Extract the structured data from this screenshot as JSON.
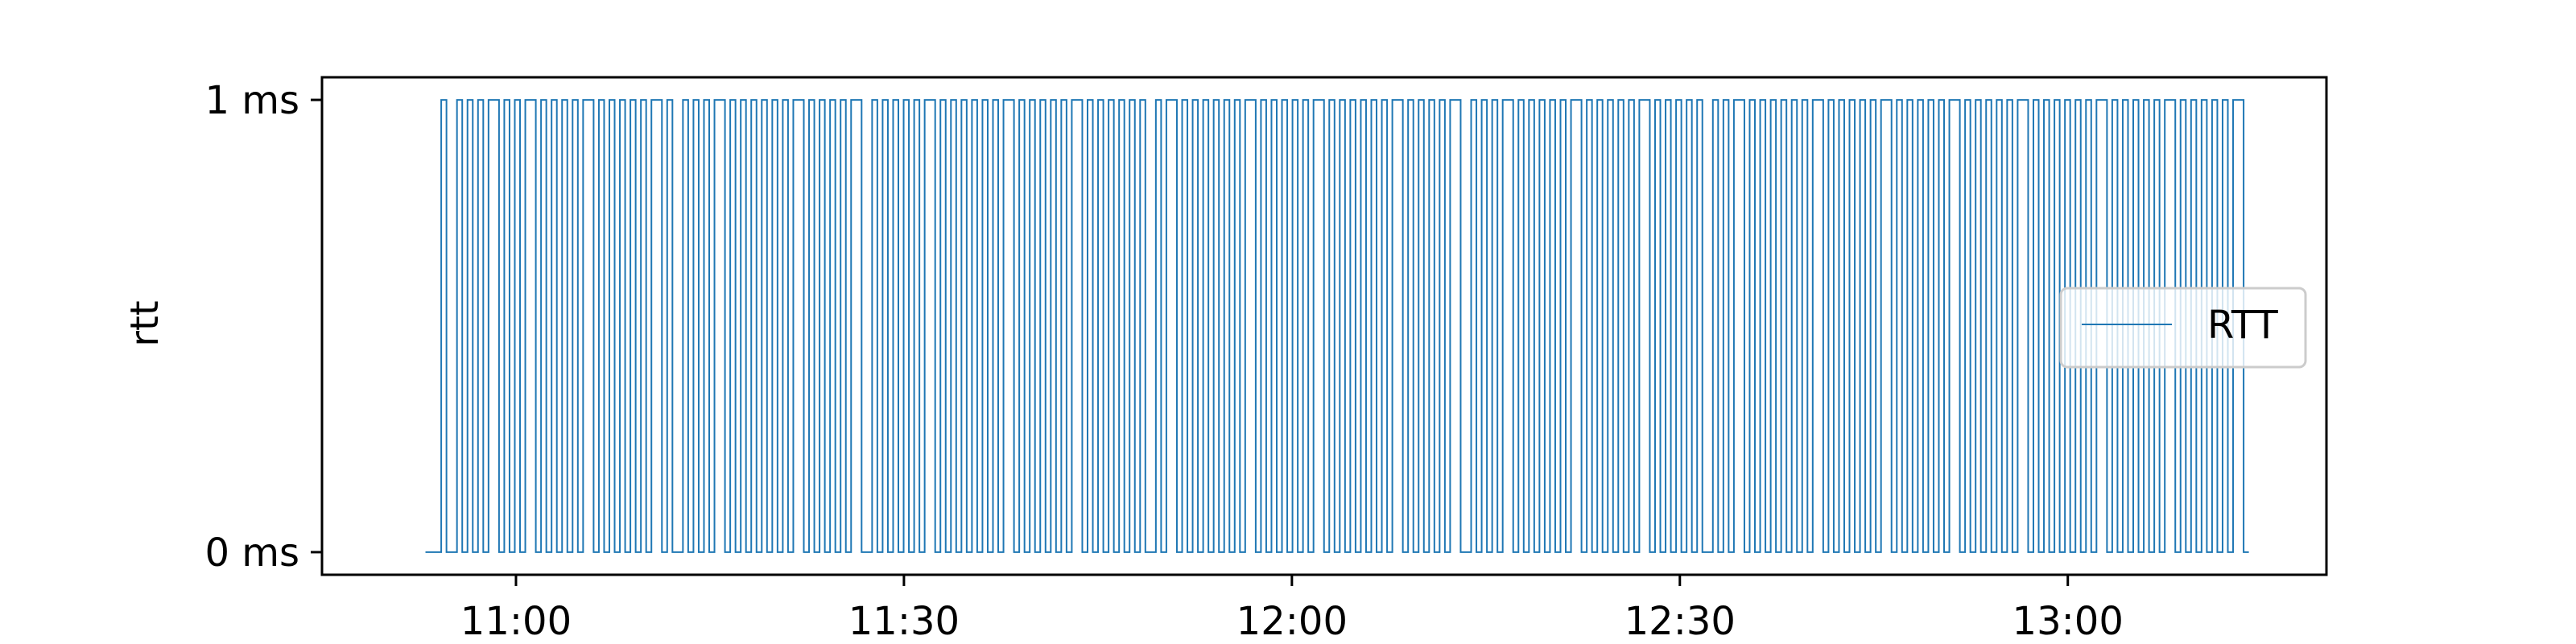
{
  "chart_data": {
    "type": "line",
    "xlabel": "",
    "ylabel": "rtt",
    "xlim": [
      "10:45",
      "13:20"
    ],
    "ylim": [
      -0.05,
      1.05
    ],
    "x_ticks": [
      {
        "value": "11:00",
        "label": "11:00"
      },
      {
        "value": "11:30",
        "label": "11:30"
      },
      {
        "value": "12:00",
        "label": "12:00"
      },
      {
        "value": "12:30",
        "label": "12:30"
      },
      {
        "value": "13:00",
        "label": "13:00"
      }
    ],
    "y_ticks": [
      {
        "value": 0,
        "label": "0 ms"
      },
      {
        "value": 1,
        "label": "1 ms"
      }
    ],
    "grid": false,
    "legend": {
      "position": "center-right",
      "entries": [
        "RTT"
      ]
    },
    "series": [
      {
        "name": "RTT",
        "color": "#1f77b4",
        "style": "step",
        "x_start": "10:53",
        "x_end": "13:14",
        "values_ms": [
          0,
          0,
          0,
          1,
          0,
          0,
          1,
          0,
          1,
          0,
          1,
          0,
          1,
          1,
          0,
          1,
          0,
          1,
          0,
          1,
          1,
          0,
          1,
          0,
          1,
          0,
          1,
          0,
          1,
          0,
          1,
          1,
          0,
          1,
          0,
          1,
          0,
          1,
          0,
          1,
          0,
          1,
          0,
          1,
          1,
          0,
          1,
          0,
          0,
          1,
          0,
          1,
          0,
          1,
          0,
          1,
          1,
          0,
          1,
          0,
          1,
          0,
          1,
          0,
          1,
          0,
          1,
          0,
          1,
          0,
          1,
          1,
          0,
          1,
          0,
          1,
          0,
          1,
          0,
          1,
          0,
          1,
          1,
          0,
          0,
          1,
          0,
          1,
          0,
          1,
          0,
          1,
          0,
          1,
          0,
          1,
          1,
          0,
          1,
          0,
          1,
          0,
          1,
          0,
          1,
          0,
          1,
          0,
          1,
          0,
          1,
          1,
          0,
          1,
          0,
          1,
          0,
          1,
          0,
          1,
          0,
          1,
          0,
          1,
          1,
          0,
          1,
          0,
          1,
          0,
          1,
          0,
          1,
          0,
          1,
          0,
          1,
          0,
          0,
          1,
          0,
          1,
          1,
          0,
          1,
          0,
          1,
          0,
          1,
          0,
          1,
          0,
          1,
          0,
          1,
          0,
          1,
          1,
          0,
          1,
          0,
          1,
          0,
          1,
          0,
          1,
          0,
          1,
          0,
          1,
          1,
          0,
          1,
          0,
          1,
          0,
          1,
          0,
          1,
          0,
          1,
          0,
          1,
          0,
          1,
          1,
          0,
          1,
          0,
          1,
          0,
          1,
          0,
          1,
          0,
          1,
          1,
          0,
          0,
          1,
          0,
          1,
          0,
          1,
          0,
          1,
          1,
          0,
          1,
          0,
          1,
          0,
          1,
          0,
          1,
          0,
          1,
          0,
          1,
          1,
          0,
          1,
          0,
          1,
          0,
          1,
          0,
          1,
          0,
          1,
          0,
          1,
          1,
          0,
          1,
          0,
          1,
          0,
          1,
          0,
          1,
          0,
          1,
          0,
          0,
          1,
          0,
          1,
          0,
          1,
          1,
          0,
          1,
          0,
          1,
          0,
          1,
          0,
          1,
          0,
          1,
          0,
          1,
          0,
          1,
          1,
          0,
          1,
          0,
          1,
          0,
          1,
          0,
          1,
          0,
          1,
          0,
          1,
          1,
          0,
          1,
          0,
          1,
          0,
          1,
          0,
          1,
          0,
          1,
          0,
          1,
          1,
          0,
          1,
          0,
          1,
          0,
          1,
          0,
          1,
          0,
          1,
          0,
          1,
          1,
          0,
          1,
          0,
          1,
          0,
          1,
          0,
          1,
          0,
          1,
          0,
          1,
          0,
          1,
          1,
          0,
          1,
          0,
          1,
          0,
          1,
          0,
          1,
          0,
          1,
          0,
          1,
          1,
          0,
          1,
          0,
          1,
          0,
          1,
          0,
          1,
          0,
          1,
          0,
          1,
          1,
          0
        ]
      }
    ]
  }
}
